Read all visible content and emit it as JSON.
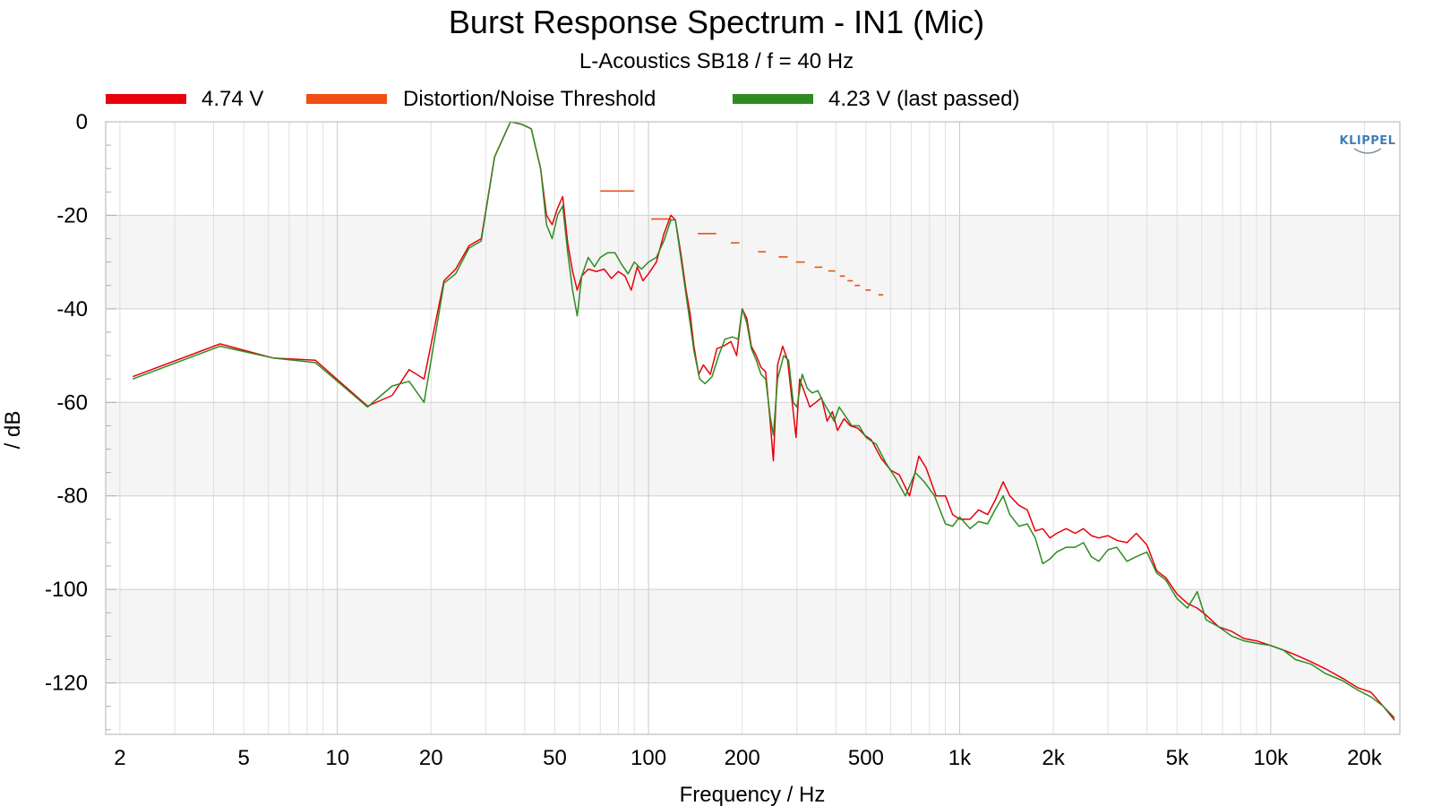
{
  "chart_data": {
    "type": "line",
    "title": "Burst Response Spectrum - IN1 (Mic)",
    "subtitle": "L-Acoustics SB18 / f = 40 Hz",
    "xlabel": "Frequency / Hz",
    "ylabel": "/ dB",
    "x_scale": "log",
    "xlim": [
      1.8,
      26000
    ],
    "ylim": [
      -131,
      0
    ],
    "grid": true,
    "legend_position": "top",
    "watermark": "KLIPPEL",
    "x_ticks": [
      {
        "value": 2,
        "label": "2"
      },
      {
        "value": 5,
        "label": "5"
      },
      {
        "value": 10,
        "label": "10"
      },
      {
        "value": 20,
        "label": "20"
      },
      {
        "value": 50,
        "label": "50"
      },
      {
        "value": 100,
        "label": "100"
      },
      {
        "value": 200,
        "label": "200"
      },
      {
        "value": 500,
        "label": "500"
      },
      {
        "value": 1000,
        "label": "1k"
      },
      {
        "value": 2000,
        "label": "2k"
      },
      {
        "value": 5000,
        "label": "5k"
      },
      {
        "value": 10000,
        "label": "10k"
      },
      {
        "value": 20000,
        "label": "20k"
      }
    ],
    "y_ticks": [
      {
        "value": 0,
        "label": "0"
      },
      {
        "value": -20,
        "label": "-20"
      },
      {
        "value": -40,
        "label": "-40"
      },
      {
        "value": -60,
        "label": "-60"
      },
      {
        "value": -80,
        "label": "-80"
      },
      {
        "value": -100,
        "label": "-100"
      },
      {
        "value": -120,
        "label": "-120"
      }
    ],
    "series": [
      {
        "name": "4.74 V",
        "color": "#e8000b",
        "style": "line",
        "points": [
          [
            2.2,
            -54.5
          ],
          [
            4.2,
            -47.5
          ],
          [
            6.2,
            -50.5
          ],
          [
            8.5,
            -51
          ],
          [
            12.5,
            -60.8
          ],
          [
            15,
            -58.5
          ],
          [
            17,
            -53
          ],
          [
            19,
            -55
          ],
          [
            22,
            -34
          ],
          [
            24,
            -31.5
          ],
          [
            26.5,
            -26.5
          ],
          [
            29,
            -25
          ],
          [
            32,
            -7.5
          ],
          [
            36,
            0
          ],
          [
            39,
            -0.5
          ],
          [
            42,
            -1.5
          ],
          [
            45,
            -10
          ],
          [
            47,
            -20
          ],
          [
            49,
            -22
          ],
          [
            51,
            -18.5
          ],
          [
            53,
            -16
          ],
          [
            55,
            -26
          ],
          [
            57,
            -32
          ],
          [
            59,
            -36
          ],
          [
            61,
            -33
          ],
          [
            64,
            -31.5
          ],
          [
            68,
            -32
          ],
          [
            72,
            -31.5
          ],
          [
            76,
            -33.5
          ],
          [
            80,
            -32
          ],
          [
            84,
            -33
          ],
          [
            88,
            -36
          ],
          [
            92,
            -31
          ],
          [
            96,
            -34
          ],
          [
            100,
            -32.5
          ],
          [
            106,
            -30
          ],
          [
            112,
            -24
          ],
          [
            118,
            -20
          ],
          [
            122,
            -21
          ],
          [
            127,
            -28
          ],
          [
            132,
            -36
          ],
          [
            136,
            -41
          ],
          [
            140,
            -48
          ],
          [
            145,
            -54
          ],
          [
            150,
            -52
          ],
          [
            158,
            -54
          ],
          [
            166,
            -48.5
          ],
          [
            174,
            -48
          ],
          [
            184,
            -47
          ],
          [
            192,
            -50
          ],
          [
            200,
            -40
          ],
          [
            207,
            -42
          ],
          [
            214,
            -48
          ],
          [
            222,
            -50
          ],
          [
            230,
            -52.5
          ],
          [
            238,
            -53.5
          ],
          [
            246,
            -64
          ],
          [
            252,
            -72.5
          ],
          [
            260,
            -52
          ],
          [
            270,
            -48
          ],
          [
            280,
            -51
          ],
          [
            292,
            -62
          ],
          [
            298,
            -67.5
          ],
          [
            306,
            -55
          ],
          [
            318,
            -58
          ],
          [
            330,
            -61
          ],
          [
            345,
            -60
          ],
          [
            360,
            -59
          ],
          [
            375,
            -64
          ],
          [
            390,
            -62
          ],
          [
            405,
            -66
          ],
          [
            425,
            -63.5
          ],
          [
            445,
            -65
          ],
          [
            470,
            -65.5
          ],
          [
            495,
            -67
          ],
          [
            520,
            -68
          ],
          [
            560,
            -72
          ],
          [
            600,
            -74.5
          ],
          [
            640,
            -75.5
          ],
          [
            690,
            -80
          ],
          [
            740,
            -71.5
          ],
          [
            780,
            -74
          ],
          [
            840,
            -80
          ],
          [
            900,
            -80
          ],
          [
            950,
            -84
          ],
          [
            1000,
            -85
          ],
          [
            1080,
            -85
          ],
          [
            1150,
            -83
          ],
          [
            1230,
            -84
          ],
          [
            1300,
            -81
          ],
          [
            1380,
            -77
          ],
          [
            1450,
            -80
          ],
          [
            1550,
            -82
          ],
          [
            1650,
            -83
          ],
          [
            1750,
            -87.5
          ],
          [
            1850,
            -87
          ],
          [
            1950,
            -89
          ],
          [
            2050,
            -88
          ],
          [
            2200,
            -87
          ],
          [
            2350,
            -88
          ],
          [
            2500,
            -87
          ],
          [
            2650,
            -88.5
          ],
          [
            2800,
            -89
          ],
          [
            3000,
            -88.5
          ],
          [
            3200,
            -89.5
          ],
          [
            3450,
            -90
          ],
          [
            3700,
            -88
          ],
          [
            4000,
            -90.5
          ],
          [
            4300,
            -96
          ],
          [
            4600,
            -97.5
          ],
          [
            5000,
            -101
          ],
          [
            5400,
            -103
          ],
          [
            5800,
            -104
          ],
          [
            6200,
            -105.5
          ],
          [
            6800,
            -108
          ],
          [
            7500,
            -109
          ],
          [
            8200,
            -110.5
          ],
          [
            9000,
            -111
          ],
          [
            10000,
            -112
          ],
          [
            11000,
            -113
          ],
          [
            12000,
            -114
          ],
          [
            13500,
            -115.5
          ],
          [
            15000,
            -117
          ],
          [
            17000,
            -119
          ],
          [
            19000,
            -121
          ],
          [
            21000,
            -122
          ],
          [
            23000,
            -125
          ],
          [
            25000,
            -128
          ]
        ]
      },
      {
        "name": "Distortion/Noise Threshold",
        "color": "#f04f15",
        "style": "segments",
        "segments": [
          [
            70,
            90,
            -14.8
          ],
          [
            102,
            118,
            -20.8
          ],
          [
            144,
            165,
            -23.9
          ],
          [
            184,
            196,
            -25.9
          ],
          [
            225,
            238,
            -27.8
          ],
          [
            262,
            280,
            -28.9
          ],
          [
            298,
            318,
            -30
          ],
          [
            342,
            362,
            -31.1
          ],
          [
            378,
            398,
            -31.9
          ],
          [
            412,
            428,
            -33
          ],
          [
            436,
            454,
            -34
          ],
          [
            460,
            478,
            -35
          ],
          [
            498,
            518,
            -36
          ],
          [
            548,
            568,
            -37
          ]
        ]
      },
      {
        "name": "4.23 V (last passed)",
        "color": "#2e8b22",
        "style": "line",
        "points": [
          [
            2.2,
            -55
          ],
          [
            4.2,
            -48
          ],
          [
            6.2,
            -50.5
          ],
          [
            8.5,
            -51.5
          ],
          [
            12.5,
            -61
          ],
          [
            15,
            -56.5
          ],
          [
            17,
            -55.5
          ],
          [
            19,
            -60
          ],
          [
            22,
            -34.5
          ],
          [
            24,
            -32.5
          ],
          [
            26.5,
            -27
          ],
          [
            29,
            -25.5
          ],
          [
            32,
            -7.5
          ],
          [
            36,
            0
          ],
          [
            39,
            -0.5
          ],
          [
            42,
            -1.5
          ],
          [
            45,
            -10
          ],
          [
            47,
            -22
          ],
          [
            49,
            -25
          ],
          [
            51,
            -20
          ],
          [
            53,
            -18
          ],
          [
            55,
            -28
          ],
          [
            57,
            -36
          ],
          [
            59,
            -41.5
          ],
          [
            61,
            -33
          ],
          [
            64,
            -29
          ],
          [
            67,
            -31
          ],
          [
            70,
            -29
          ],
          [
            74,
            -28
          ],
          [
            78,
            -28
          ],
          [
            82,
            -30.5
          ],
          [
            86,
            -32.5
          ],
          [
            90,
            -30
          ],
          [
            95,
            -31.5
          ],
          [
            100,
            -30
          ],
          [
            106,
            -29
          ],
          [
            112,
            -25.5
          ],
          [
            118,
            -21
          ],
          [
            122,
            -21
          ],
          [
            127,
            -29
          ],
          [
            132,
            -37
          ],
          [
            136,
            -43
          ],
          [
            140,
            -49
          ],
          [
            146,
            -55
          ],
          [
            152,
            -56
          ],
          [
            160,
            -54.5
          ],
          [
            168,
            -50
          ],
          [
            176,
            -46.5
          ],
          [
            186,
            -46
          ],
          [
            194,
            -46.5
          ],
          [
            200,
            -40
          ],
          [
            207,
            -43
          ],
          [
            214,
            -48.5
          ],
          [
            222,
            -51
          ],
          [
            230,
            -54
          ],
          [
            238,
            -55
          ],
          [
            246,
            -63
          ],
          [
            252,
            -67
          ],
          [
            260,
            -55
          ],
          [
            272,
            -50
          ],
          [
            282,
            -51
          ],
          [
            292,
            -60
          ],
          [
            300,
            -61
          ],
          [
            312,
            -54
          ],
          [
            324,
            -57
          ],
          [
            336,
            -58
          ],
          [
            350,
            -57.5
          ],
          [
            365,
            -60
          ],
          [
            380,
            -62
          ],
          [
            395,
            -64
          ],
          [
            410,
            -61
          ],
          [
            430,
            -63
          ],
          [
            450,
            -65
          ],
          [
            475,
            -65
          ],
          [
            500,
            -67.5
          ],
          [
            540,
            -69
          ],
          [
            580,
            -73
          ],
          [
            620,
            -76
          ],
          [
            670,
            -80
          ],
          [
            720,
            -75
          ],
          [
            770,
            -77
          ],
          [
            830,
            -80
          ],
          [
            900,
            -86
          ],
          [
            950,
            -86.5
          ],
          [
            1000,
            -84.5
          ],
          [
            1080,
            -87
          ],
          [
            1150,
            -85.5
          ],
          [
            1230,
            -86
          ],
          [
            1300,
            -83
          ],
          [
            1380,
            -80
          ],
          [
            1450,
            -84
          ],
          [
            1550,
            -86.5
          ],
          [
            1650,
            -86
          ],
          [
            1750,
            -89
          ],
          [
            1850,
            -94.5
          ],
          [
            1950,
            -93.5
          ],
          [
            2050,
            -92
          ],
          [
            2200,
            -91
          ],
          [
            2350,
            -91
          ],
          [
            2500,
            -90
          ],
          [
            2650,
            -93
          ],
          [
            2800,
            -94
          ],
          [
            3000,
            -91.5
          ],
          [
            3200,
            -91
          ],
          [
            3450,
            -94
          ],
          [
            3700,
            -93
          ],
          [
            4000,
            -92
          ],
          [
            4300,
            -96.5
          ],
          [
            4600,
            -98
          ],
          [
            5000,
            -102
          ],
          [
            5400,
            -104
          ],
          [
            5800,
            -100.5
          ],
          [
            6200,
            -106.5
          ],
          [
            6800,
            -108
          ],
          [
            7500,
            -110
          ],
          [
            8200,
            -111
          ],
          [
            9000,
            -111.5
          ],
          [
            10000,
            -112
          ],
          [
            11000,
            -113
          ],
          [
            12000,
            -115
          ],
          [
            13500,
            -116
          ],
          [
            15000,
            -118
          ],
          [
            17000,
            -119.5
          ],
          [
            19000,
            -121.5
          ],
          [
            21000,
            -123
          ],
          [
            23000,
            -125
          ],
          [
            25000,
            -127.5
          ]
        ]
      }
    ]
  }
}
